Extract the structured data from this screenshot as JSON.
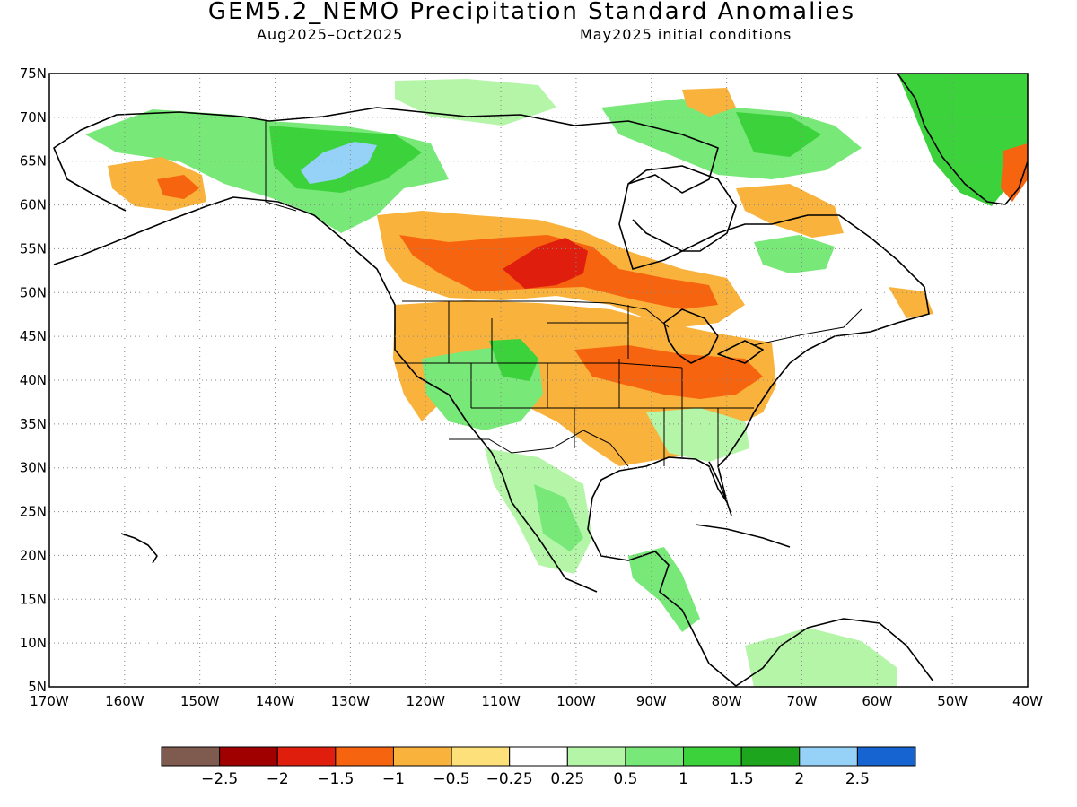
{
  "title": "GEM5.2_NEMO Precipitation Standard Anomalies",
  "subtitle_period": "Aug2025–Oct2025",
  "subtitle_init": "May2025 initial conditions",
  "map": {
    "lon_range": [
      -170,
      -40
    ],
    "lat_range": [
      5,
      75
    ],
    "lat_ticks": [
      {
        "value": 75,
        "label": "75N"
      },
      {
        "value": 70,
        "label": "70N"
      },
      {
        "value": 65,
        "label": "65N"
      },
      {
        "value": 60,
        "label": "60N"
      },
      {
        "value": 55,
        "label": "55N"
      },
      {
        "value": 50,
        "label": "50N"
      },
      {
        "value": 45,
        "label": "45N"
      },
      {
        "value": 40,
        "label": "40N"
      },
      {
        "value": 35,
        "label": "35N"
      },
      {
        "value": 30,
        "label": "30N"
      },
      {
        "value": 25,
        "label": "25N"
      },
      {
        "value": 20,
        "label": "20N"
      },
      {
        "value": 15,
        "label": "15N"
      },
      {
        "value": 10,
        "label": "10N"
      },
      {
        "value": 5,
        "label": "5N"
      }
    ],
    "lon_ticks": [
      {
        "value": -170,
        "label": "170W"
      },
      {
        "value": -160,
        "label": "160W"
      },
      {
        "value": -150,
        "label": "150W"
      },
      {
        "value": -140,
        "label": "140W"
      },
      {
        "value": -130,
        "label": "130W"
      },
      {
        "value": -120,
        "label": "120W"
      },
      {
        "value": -110,
        "label": "110W"
      },
      {
        "value": -100,
        "label": "100W"
      },
      {
        "value": -90,
        "label": "90W"
      },
      {
        "value": -80,
        "label": "80W"
      },
      {
        "value": -70,
        "label": "70W"
      },
      {
        "value": -60,
        "label": "60W"
      },
      {
        "value": -50,
        "label": "50W"
      },
      {
        "value": -40,
        "label": "40W"
      }
    ],
    "grid": "dotted"
  },
  "colorbar": {
    "colors": [
      "#7f5a4e",
      "#a00000",
      "#e01e0e",
      "#f7640f",
      "#f9b23c",
      "#fde07a",
      "#ffffff",
      "#b4f5a8",
      "#78e878",
      "#3cd23c",
      "#1ea51e",
      "#96d2f8",
      "#1664d2"
    ],
    "labels": [
      "−2.5",
      "−2",
      "−1.5",
      "−1",
      "−0.5",
      "−0.25",
      "0.25",
      "0.5",
      "1",
      "1.5",
      "2",
      "2.5"
    ]
  },
  "colors": {
    "dry_strong": "#e01e0e",
    "dry": "#f7640f",
    "dry_mild": "#f9b23c",
    "dry_weak": "#fde07a",
    "wet_weak": "#b4f5a8",
    "wet": "#78e878",
    "wet_mid": "#3cd23c",
    "wet_strong": "#1ea51e",
    "wet_extreme": "#96d2f8"
  }
}
